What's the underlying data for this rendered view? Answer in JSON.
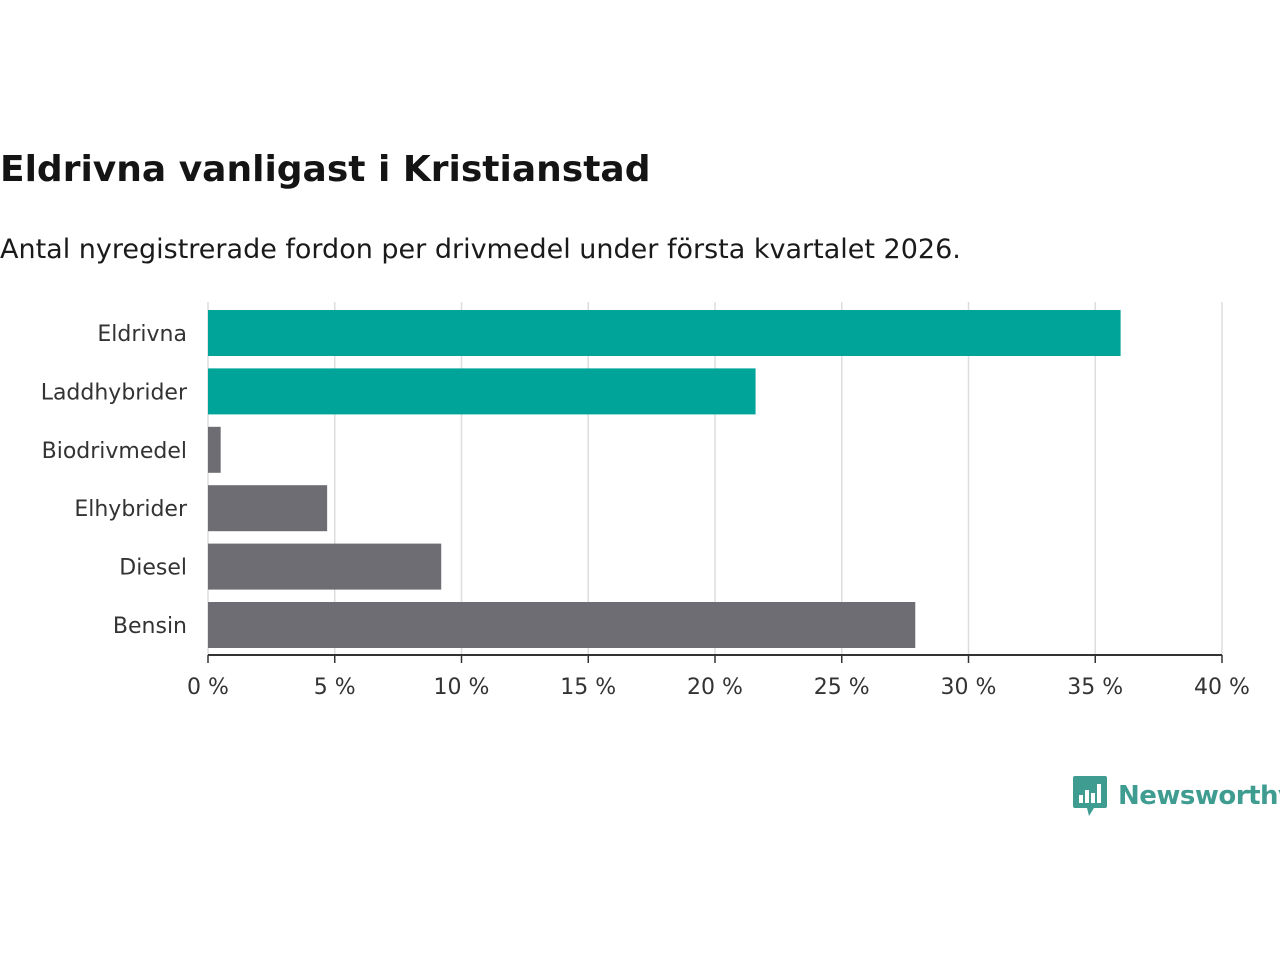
{
  "header": {
    "title": "Eldrivna vanligast i Kristianstad",
    "subtitle": "Antal nyregistrerade fordon per drivmedel under första kvartalet 2026."
  },
  "chart_data": {
    "type": "bar",
    "orientation": "horizontal",
    "categories": [
      "Eldrivna",
      "Laddhybrider",
      "Biodrivmedel",
      "Elhybrider",
      "Diesel",
      "Bensin"
    ],
    "values": [
      36.0,
      21.6,
      0.5,
      4.7,
      9.2,
      27.9
    ],
    "colors": [
      "#00a499",
      "#00a499",
      "#6e6d73",
      "#6e6d73",
      "#6e6d73",
      "#6e6d73"
    ],
    "xlim": [
      0,
      40
    ],
    "xticks": [
      0,
      5,
      10,
      15,
      20,
      25,
      30,
      35,
      40
    ],
    "tick_suffix": " %",
    "grid": true,
    "xlabel": "",
    "ylabel": ""
  },
  "colors": {
    "highlight": "#00a499",
    "default": "#6e6d73",
    "grid": "#dddddd",
    "axis": "#333333",
    "brand": "#3f9c90"
  },
  "branding": {
    "logo_text": "Newsworthy",
    "logo_icon": "bar-chart-speech-bubble-icon"
  }
}
